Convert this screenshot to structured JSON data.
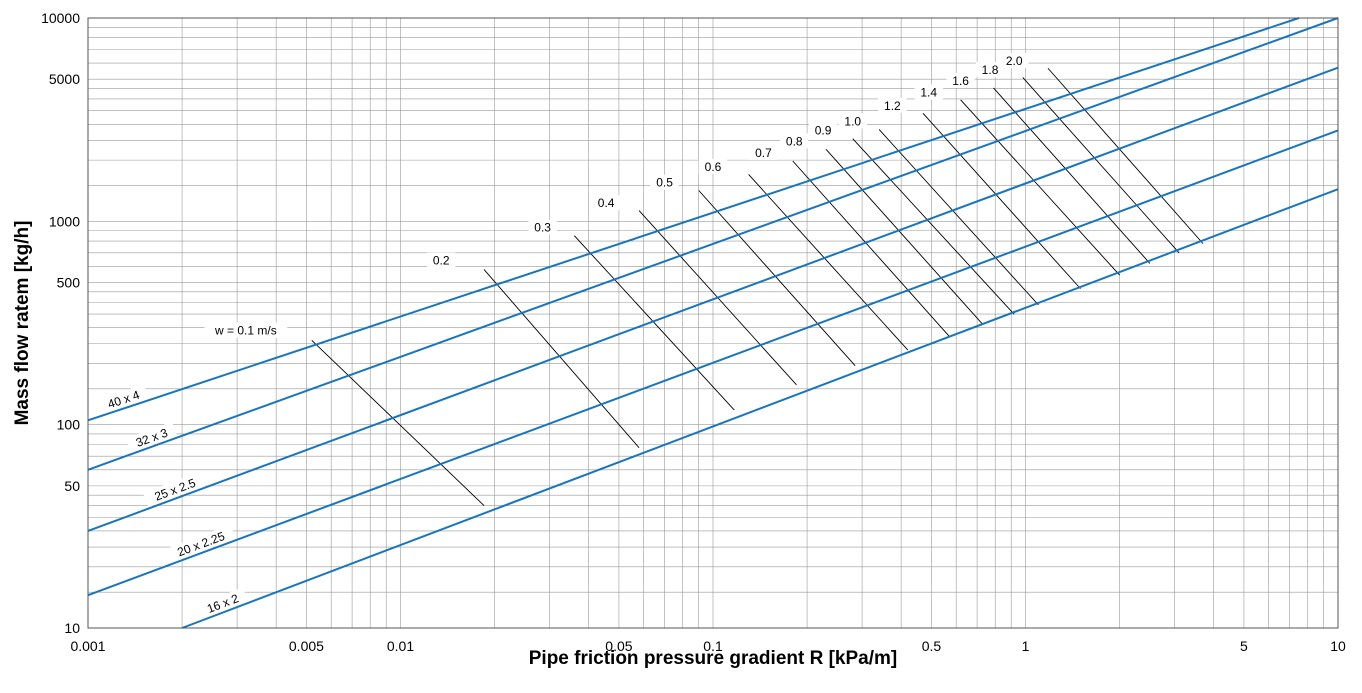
{
  "chart_data": {
    "type": "line",
    "title": "",
    "xlabel": "Pipe friction pressure gradient R [kPa/m]",
    "ylabel": "Mass flow ratem [kg/h]",
    "x_scale": "log",
    "y_scale": "log",
    "xlim": [
      0.001,
      10
    ],
    "ylim": [
      10,
      10000
    ],
    "grid": true,
    "x_ticks": [
      {
        "value": 0.001,
        "label": "0.001"
      },
      {
        "value": 0.005,
        "label": "0.005"
      },
      {
        "value": 0.01,
        "label": "0.01"
      },
      {
        "value": 0.05,
        "label": "0.05"
      },
      {
        "value": 0.1,
        "label": "0.1"
      },
      {
        "value": 0.5,
        "label": "0.5"
      },
      {
        "value": 1,
        "label": "1"
      },
      {
        "value": 5,
        "label": "5"
      },
      {
        "value": 10,
        "label": "10"
      }
    ],
    "y_ticks": [
      {
        "value": 10,
        "label": "10"
      },
      {
        "value": 50,
        "label": "50"
      },
      {
        "value": 100,
        "label": "100"
      },
      {
        "value": 500,
        "label": "500"
      },
      {
        "value": 1000,
        "label": "1000"
      },
      {
        "value": 5000,
        "label": "5000"
      },
      {
        "value": 10000,
        "label": "10000"
      }
    ],
    "pipe_series": [
      {
        "name": "40 x 4",
        "color": "#1a75bc",
        "x": [
          0.001,
          7.5
        ],
        "y": [
          105,
          10000
        ],
        "label_at": 0.0013
      },
      {
        "name": "32 x 3",
        "color": "#1a75bc",
        "x": [
          0.001,
          10
        ],
        "y": [
          60,
          10000
        ],
        "label_at": 0.0016
      },
      {
        "name": "25 x 2.5",
        "color": "#1a75bc",
        "x": [
          0.001,
          10
        ],
        "y": [
          30,
          5700
        ],
        "label_at": 0.0019
      },
      {
        "name": "20 x 2.25",
        "color": "#1a75bc",
        "x": [
          0.001,
          10
        ],
        "y": [
          14.5,
          2800
        ],
        "label_at": 0.0023
      },
      {
        "name": "16 x 2",
        "color": "#1a75bc",
        "x": [
          0.002,
          10
        ],
        "y": [
          10,
          1440
        ],
        "label_at": 0.0027
      }
    ],
    "velocity_lines": [
      {
        "label": "w = 0.1 m/s",
        "x": [
          0.0052,
          0.0185
        ],
        "y": [
          260,
          40
        ],
        "label_at": [
          0.0032,
          290
        ]
      },
      {
        "label": "0.2",
        "x": [
          0.0185,
          0.058
        ],
        "y": [
          580,
          77
        ],
        "label_at": [
          0.0135,
          640
        ]
      },
      {
        "label": "0.3",
        "x": [
          0.036,
          0.117
        ],
        "y": [
          850,
          118
        ],
        "label_at": [
          0.0285,
          930
        ]
      },
      {
        "label": "0.4",
        "x": [
          0.058,
          0.185
        ],
        "y": [
          1130,
          157
        ],
        "label_at": [
          0.0455,
          1230
        ]
      },
      {
        "label": "0.5",
        "x": [
          0.09,
          0.285
        ],
        "y": [
          1420,
          195
        ],
        "label_at": [
          0.07,
          1550
        ]
      },
      {
        "label": "0.6",
        "x": [
          0.13,
          0.42
        ],
        "y": [
          1700,
          233
        ],
        "label_at": [
          0.1,
          1850
        ]
      },
      {
        "label": "0.7",
        "x": [
          0.18,
          0.57
        ],
        "y": [
          1980,
          272
        ],
        "label_at": [
          0.145,
          2170
        ]
      },
      {
        "label": "0.8",
        "x": [
          0.23,
          0.73
        ],
        "y": [
          2260,
          311
        ],
        "label_at": [
          0.182,
          2470
        ]
      },
      {
        "label": "0.9",
        "x": [
          0.28,
          0.92
        ],
        "y": [
          2550,
          349
        ],
        "label_at": [
          0.225,
          2800
        ]
      },
      {
        "label": "1.0",
        "x": [
          0.34,
          1.1
        ],
        "y": [
          2830,
          388
        ],
        "label_at": [
          0.28,
          3100
        ]
      },
      {
        "label": "1.2",
        "x": [
          0.47,
          1.5
        ],
        "y": [
          3400,
          466
        ],
        "label_at": [
          0.375,
          3700
        ]
      },
      {
        "label": "1.4",
        "x": [
          0.62,
          2.0
        ],
        "y": [
          3960,
          544
        ],
        "label_at": [
          0.49,
          4300
        ]
      },
      {
        "label": "1.6",
        "x": [
          0.79,
          2.5
        ],
        "y": [
          4530,
          621
        ],
        "label_at": [
          0.62,
          4900
        ]
      },
      {
        "label": "1.8",
        "x": [
          0.98,
          3.1
        ],
        "y": [
          5100,
          700
        ],
        "label_at": [
          0.77,
          5550
        ]
      },
      {
        "label": "2.0",
        "x": [
          1.18,
          3.7
        ],
        "y": [
          5660,
          777
        ],
        "label_at": [
          0.92,
          6150
        ]
      }
    ]
  }
}
